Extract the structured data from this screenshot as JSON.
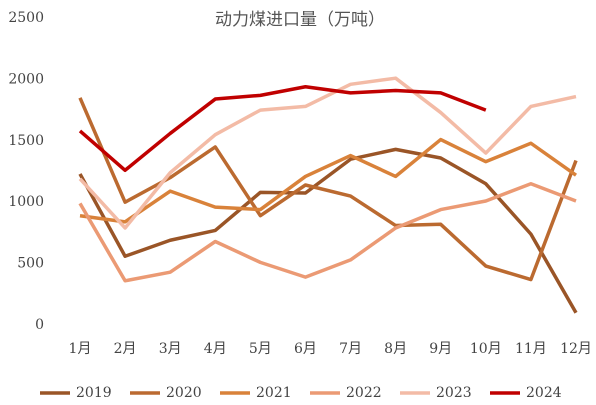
{
  "chart_data": {
    "type": "line",
    "title": "动力煤进口量（万吨）",
    "categories": [
      "1月",
      "2月",
      "3月",
      "4月",
      "5月",
      "6月",
      "7月",
      "8月",
      "9月",
      "10月",
      "11月",
      "12月"
    ],
    "series": [
      {
        "name": "2019",
        "color": "#9a5527",
        "values": [
          1230,
          560,
          690,
          770,
          1080,
          1075,
          1350,
          1430,
          1360,
          1150,
          740,
          100
        ]
      },
      {
        "name": "2020",
        "color": "#bb6a30",
        "values": [
          1850,
          1000,
          1200,
          1450,
          890,
          1140,
          1050,
          810,
          820,
          480,
          370,
          1340
        ]
      },
      {
        "name": "2021",
        "color": "#d9823a",
        "values": [
          890,
          840,
          1090,
          960,
          940,
          1210,
          1380,
          1210,
          1510,
          1330,
          1480,
          1220
        ]
      },
      {
        "name": "2022",
        "color": "#eb9a74",
        "values": [
          990,
          360,
          430,
          680,
          510,
          390,
          530,
          790,
          940,
          1010,
          1150,
          1010
        ]
      },
      {
        "name": "2023",
        "color": "#f3bba6",
        "values": [
          1190,
          790,
          1240,
          1550,
          1750,
          1780,
          1960,
          2010,
          1730,
          1400,
          1780,
          1860
        ]
      },
      {
        "name": "2024",
        "color": "#c00000",
        "values": [
          1580,
          1260,
          1560,
          1840,
          1870,
          1940,
          1890,
          1910,
          1890,
          1750,
          null,
          null
        ]
      }
    ],
    "ylim": [
      0,
      2500
    ],
    "yticks": [
      0,
      500,
      1000,
      1500,
      2000,
      2500
    ],
    "grid": false,
    "legend": "bottom"
  }
}
